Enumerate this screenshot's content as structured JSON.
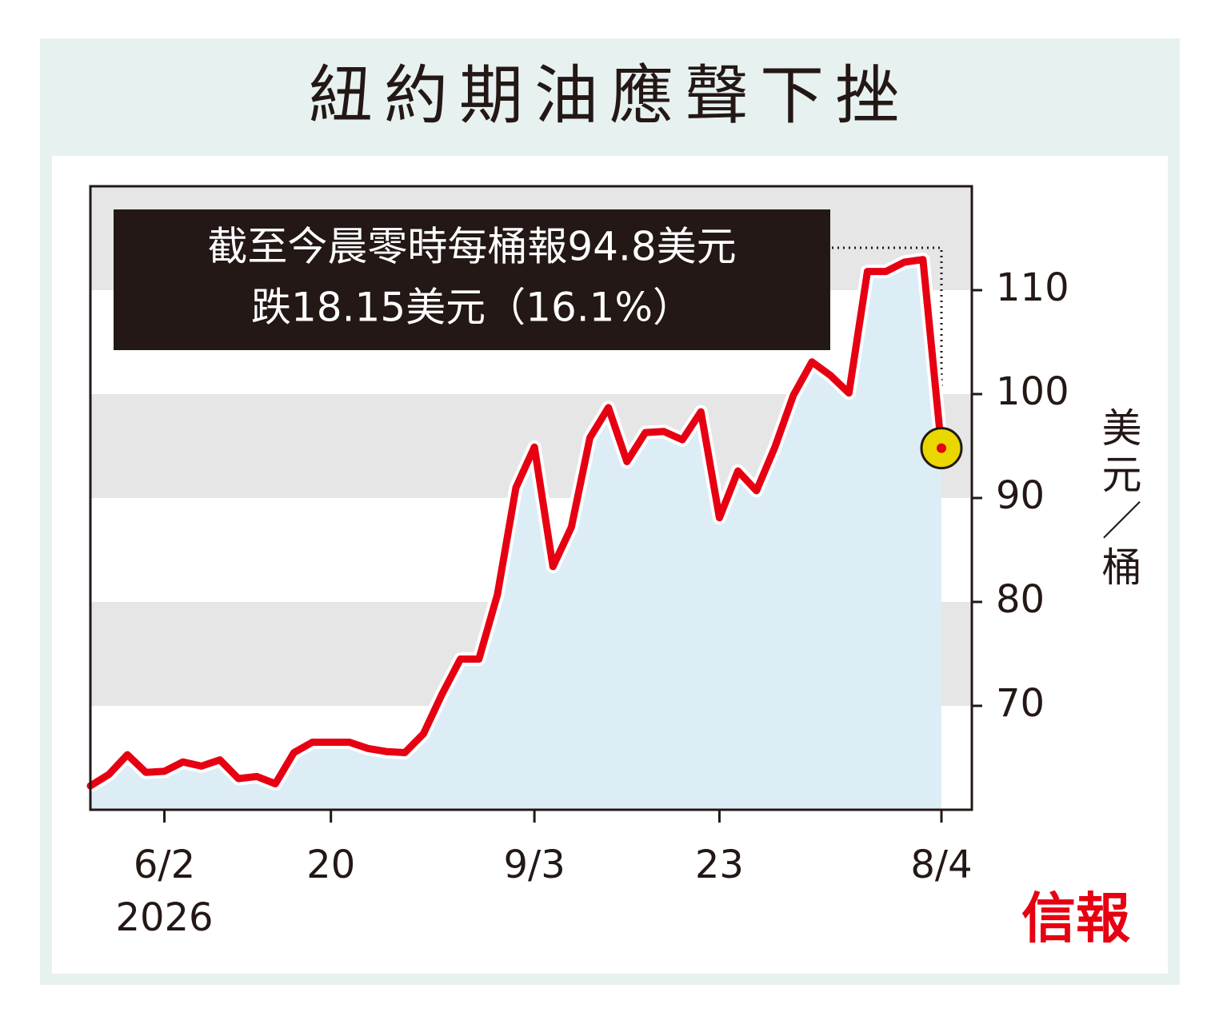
{
  "chart_data": {
    "type": "line",
    "title": "紐約期油應聲下挫",
    "annotation": [
      "截至今晨零時每桶報94.8美元",
      "跌18.15美元（16.1%）"
    ],
    "y_axis_label": "美元／桶",
    "source": "信報",
    "categories": [
      null,
      null,
      null,
      null,
      "6/2",
      null,
      null,
      null,
      null,
      null,
      null,
      null,
      null,
      "20",
      null,
      null,
      null,
      null,
      null,
      null,
      null,
      null,
      null,
      null,
      "9/3",
      null,
      null,
      null,
      null,
      null,
      null,
      null,
      null,
      null,
      "23",
      null,
      null,
      null,
      null,
      null,
      null,
      null,
      null,
      null,
      null,
      null,
      "8/4"
    ],
    "x_year_label": "2026",
    "series": [
      {
        "name": "紐約期油",
        "color": "#e60012",
        "values": [
          62.3,
          63.4,
          65.3,
          63.6,
          63.7,
          64.6,
          64.2,
          64.8,
          63.0,
          63.2,
          62.5,
          65.5,
          66.5,
          66.5,
          66.5,
          65.9,
          65.6,
          65.5,
          67.3,
          71.1,
          74.5,
          74.5,
          80.7,
          91.0,
          94.9,
          83.4,
          87.2,
          95.8,
          98.7,
          93.5,
          96.3,
          96.4,
          95.6,
          98.3,
          88.1,
          92.6,
          90.7,
          94.9,
          99.9,
          103.1,
          101.8,
          100.1,
          111.8,
          111.8,
          112.7,
          112.95,
          94.8
        ]
      }
    ],
    "area_color": "#dcedf6",
    "marker_color": "#e8d800",
    "ylim": [
      60,
      120
    ],
    "yticks": [
      70,
      80,
      90,
      100,
      110
    ],
    "shaded_bands": true
  }
}
